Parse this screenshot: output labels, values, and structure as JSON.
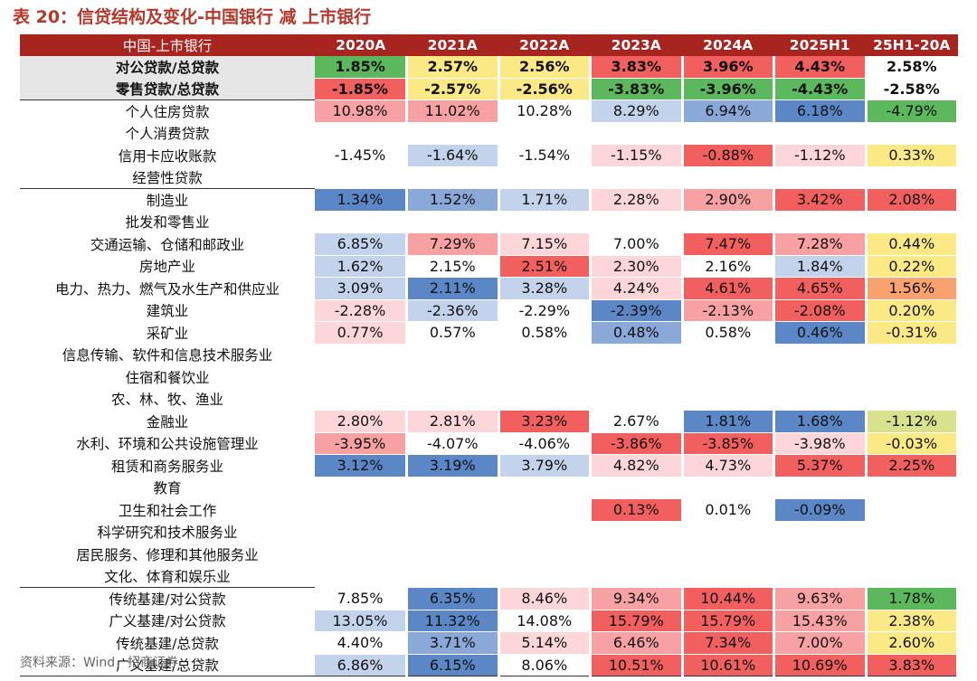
{
  "title": "表 20：信贷结构及变化-中国银行 减 上市银行",
  "source": "资料来源：Wind，招商证券",
  "colors": {
    "header_bg": "#a8251f",
    "title": "#b5372a",
    "strong_red": "#f1605e",
    "mid_red": "#f7a1a3",
    "light_red": "#fcd6d8",
    "strong_blue": "#5b87c6",
    "mid_blue": "#8aa9d8",
    "light_blue": "#c4d3ec",
    "yellow": "#fbe985",
    "light_green": "#d6e38c",
    "green": "#5cb85c",
    "orange": "#f7a26f",
    "summary_bg": "#e6e6e6"
  },
  "table": {
    "headers": [
      "中国-上市银行",
      "2020A",
      "2021A",
      "2022A",
      "2023A",
      "2024A",
      "2025H1",
      "25H1-20A"
    ],
    "rows": [
      {
        "label": "对公贷款/总贷款",
        "style": "bold",
        "cells": [
          {
            "v": "1.85%",
            "c": "green"
          },
          {
            "v": "2.57%",
            "c": "yellow"
          },
          {
            "v": "2.56%",
            "c": "yellow"
          },
          {
            "v": "3.83%",
            "c": "strong_red"
          },
          {
            "v": "3.96%",
            "c": "strong_red"
          },
          {
            "v": "4.43%",
            "c": "strong_red"
          },
          {
            "v": "2.58%",
            "c": ""
          }
        ]
      },
      {
        "label": "零售贷款/总贷款",
        "style": "bold",
        "cells": [
          {
            "v": "-1.85%",
            "c": "strong_red"
          },
          {
            "v": "-2.57%",
            "c": "yellow"
          },
          {
            "v": "-2.56%",
            "c": "yellow"
          },
          {
            "v": "-3.83%",
            "c": "green"
          },
          {
            "v": "-3.96%",
            "c": "green"
          },
          {
            "v": "-4.43%",
            "c": "green"
          },
          {
            "v": "-2.58%",
            "c": ""
          }
        ]
      },
      {
        "label": "个人住房贷款",
        "style": "topline",
        "cells": [
          {
            "v": "10.98%",
            "c": "mid_red"
          },
          {
            "v": "11.02%",
            "c": "mid_red"
          },
          {
            "v": "10.28%",
            "c": ""
          },
          {
            "v": "8.29%",
            "c": "light_blue"
          },
          {
            "v": "6.94%",
            "c": "mid_blue"
          },
          {
            "v": "6.18%",
            "c": "strong_blue"
          },
          {
            "v": "-4.79%",
            "c": "green"
          }
        ]
      },
      {
        "label": "个人消费贷款",
        "style": "",
        "cells": [
          {
            "v": "",
            "c": ""
          },
          {
            "v": "",
            "c": ""
          },
          {
            "v": "",
            "c": ""
          },
          {
            "v": "",
            "c": ""
          },
          {
            "v": "",
            "c": ""
          },
          {
            "v": "",
            "c": ""
          },
          {
            "v": "",
            "c": ""
          }
        ]
      },
      {
        "label": "信用卡应收账款",
        "style": "",
        "cells": [
          {
            "v": "-1.45%",
            "c": ""
          },
          {
            "v": "-1.64%",
            "c": "light_blue"
          },
          {
            "v": "-1.54%",
            "c": ""
          },
          {
            "v": "-1.15%",
            "c": "light_red"
          },
          {
            "v": "-0.88%",
            "c": "strong_red"
          },
          {
            "v": "-1.12%",
            "c": "light_red"
          },
          {
            "v": "0.33%",
            "c": "yellow"
          }
        ]
      },
      {
        "label": "经营性贷款",
        "style": "",
        "cells": [
          {
            "v": "",
            "c": ""
          },
          {
            "v": "",
            "c": ""
          },
          {
            "v": "",
            "c": ""
          },
          {
            "v": "",
            "c": ""
          },
          {
            "v": "",
            "c": ""
          },
          {
            "v": "",
            "c": ""
          },
          {
            "v": "",
            "c": ""
          }
        ]
      },
      {
        "label": "制造业",
        "style": "topline",
        "cells": [
          {
            "v": "1.34%",
            "c": "strong_blue"
          },
          {
            "v": "1.52%",
            "c": "mid_blue"
          },
          {
            "v": "1.71%",
            "c": "light_blue"
          },
          {
            "v": "2.28%",
            "c": "light_red"
          },
          {
            "v": "2.90%",
            "c": "mid_red"
          },
          {
            "v": "3.42%",
            "c": "strong_red"
          },
          {
            "v": "2.08%",
            "c": "strong_red"
          }
        ]
      },
      {
        "label": "批发和零售业",
        "style": "",
        "cells": [
          {
            "v": "",
            "c": ""
          },
          {
            "v": "",
            "c": ""
          },
          {
            "v": "",
            "c": ""
          },
          {
            "v": "",
            "c": ""
          },
          {
            "v": "",
            "c": ""
          },
          {
            "v": "",
            "c": ""
          },
          {
            "v": "",
            "c": ""
          }
        ]
      },
      {
        "label": "交通运输、仓储和邮政业",
        "style": "",
        "cells": [
          {
            "v": "6.85%",
            "c": "light_blue"
          },
          {
            "v": "7.29%",
            "c": "mid_red"
          },
          {
            "v": "7.15%",
            "c": "light_red"
          },
          {
            "v": "7.00%",
            "c": ""
          },
          {
            "v": "7.47%",
            "c": "strong_red"
          },
          {
            "v": "7.28%",
            "c": "mid_red"
          },
          {
            "v": "0.44%",
            "c": "yellow"
          }
        ]
      },
      {
        "label": "房地产业",
        "style": "",
        "cells": [
          {
            "v": "1.62%",
            "c": "light_blue"
          },
          {
            "v": "2.15%",
            "c": ""
          },
          {
            "v": "2.51%",
            "c": "strong_red"
          },
          {
            "v": "2.30%",
            "c": "light_red"
          },
          {
            "v": "2.16%",
            "c": ""
          },
          {
            "v": "1.84%",
            "c": "light_blue"
          },
          {
            "v": "0.22%",
            "c": "yellow"
          }
        ]
      },
      {
        "label": "电力、热力、燃气及水生产和供应业",
        "style": "",
        "cells": [
          {
            "v": "3.09%",
            "c": "light_blue"
          },
          {
            "v": "2.11%",
            "c": "strong_blue"
          },
          {
            "v": "3.28%",
            "c": "light_blue"
          },
          {
            "v": "4.24%",
            "c": "light_red"
          },
          {
            "v": "4.61%",
            "c": "strong_red"
          },
          {
            "v": "4.65%",
            "c": "strong_red"
          },
          {
            "v": "1.56%",
            "c": "orange"
          }
        ]
      },
      {
        "label": "建筑业",
        "style": "",
        "cells": [
          {
            "v": "-2.28%",
            "c": "light_red"
          },
          {
            "v": "-2.36%",
            "c": "light_blue"
          },
          {
            "v": "-2.29%",
            "c": ""
          },
          {
            "v": "-2.39%",
            "c": "strong_blue"
          },
          {
            "v": "-2.13%",
            "c": "mid_red"
          },
          {
            "v": "-2.08%",
            "c": "strong_red"
          },
          {
            "v": "0.20%",
            "c": "yellow"
          }
        ]
      },
      {
        "label": "采矿业",
        "style": "",
        "cells": [
          {
            "v": "0.77%",
            "c": "light_red"
          },
          {
            "v": "0.57%",
            "c": ""
          },
          {
            "v": "0.58%",
            "c": ""
          },
          {
            "v": "0.48%",
            "c": "mid_blue"
          },
          {
            "v": "0.58%",
            "c": ""
          },
          {
            "v": "0.46%",
            "c": "strong_blue"
          },
          {
            "v": "-0.31%",
            "c": "yellow"
          }
        ]
      },
      {
        "label": "信息传输、软件和信息技术服务业",
        "style": "",
        "cells": [
          {
            "v": "",
            "c": ""
          },
          {
            "v": "",
            "c": ""
          },
          {
            "v": "",
            "c": ""
          },
          {
            "v": "",
            "c": ""
          },
          {
            "v": "",
            "c": ""
          },
          {
            "v": "",
            "c": ""
          },
          {
            "v": "",
            "c": ""
          }
        ]
      },
      {
        "label": "住宿和餐饮业",
        "style": "",
        "cells": [
          {
            "v": "",
            "c": ""
          },
          {
            "v": "",
            "c": ""
          },
          {
            "v": "",
            "c": ""
          },
          {
            "v": "",
            "c": ""
          },
          {
            "v": "",
            "c": ""
          },
          {
            "v": "",
            "c": ""
          },
          {
            "v": "",
            "c": ""
          }
        ]
      },
      {
        "label": "农、林、牧、渔业",
        "style": "",
        "cells": [
          {
            "v": "",
            "c": ""
          },
          {
            "v": "",
            "c": ""
          },
          {
            "v": "",
            "c": ""
          },
          {
            "v": "",
            "c": ""
          },
          {
            "v": "",
            "c": ""
          },
          {
            "v": "",
            "c": ""
          },
          {
            "v": "",
            "c": ""
          }
        ]
      },
      {
        "label": "金融业",
        "style": "",
        "cells": [
          {
            "v": "2.80%",
            "c": "light_red"
          },
          {
            "v": "2.81%",
            "c": "light_red"
          },
          {
            "v": "3.23%",
            "c": "strong_red"
          },
          {
            "v": "2.67%",
            "c": ""
          },
          {
            "v": "1.81%",
            "c": "strong_blue"
          },
          {
            "v": "1.68%",
            "c": "strong_blue"
          },
          {
            "v": "-1.12%",
            "c": "light_green"
          }
        ]
      },
      {
        "label": "水利、环境和公共设施管理业",
        "style": "",
        "cells": [
          {
            "v": "-3.95%",
            "c": "mid_red"
          },
          {
            "v": "-4.07%",
            "c": ""
          },
          {
            "v": "-4.06%",
            "c": ""
          },
          {
            "v": "-3.86%",
            "c": "strong_red"
          },
          {
            "v": "-3.85%",
            "c": "strong_red"
          },
          {
            "v": "-3.98%",
            "c": "light_red"
          },
          {
            "v": "-0.03%",
            "c": "yellow"
          }
        ]
      },
      {
        "label": "租赁和商务服务业",
        "style": "",
        "cells": [
          {
            "v": "3.12%",
            "c": "strong_blue"
          },
          {
            "v": "3.19%",
            "c": "strong_blue"
          },
          {
            "v": "3.79%",
            "c": "light_blue"
          },
          {
            "v": "4.82%",
            "c": "light_red"
          },
          {
            "v": "4.73%",
            "c": "light_red"
          },
          {
            "v": "5.37%",
            "c": "strong_red"
          },
          {
            "v": "2.25%",
            "c": "strong_red"
          }
        ]
      },
      {
        "label": "教育",
        "style": "",
        "cells": [
          {
            "v": "",
            "c": ""
          },
          {
            "v": "",
            "c": ""
          },
          {
            "v": "",
            "c": ""
          },
          {
            "v": "",
            "c": ""
          },
          {
            "v": "",
            "c": ""
          },
          {
            "v": "",
            "c": ""
          },
          {
            "v": "",
            "c": ""
          }
        ]
      },
      {
        "label": "卫生和社会工作",
        "style": "",
        "cells": [
          {
            "v": "",
            "c": ""
          },
          {
            "v": "",
            "c": ""
          },
          {
            "v": "",
            "c": ""
          },
          {
            "v": "0.13%",
            "c": "strong_red"
          },
          {
            "v": "0.01%",
            "c": ""
          },
          {
            "v": "-0.09%",
            "c": "strong_blue"
          },
          {
            "v": "",
            "c": ""
          }
        ]
      },
      {
        "label": "科学研究和技术服务业",
        "style": "",
        "cells": [
          {
            "v": "",
            "c": ""
          },
          {
            "v": "",
            "c": ""
          },
          {
            "v": "",
            "c": ""
          },
          {
            "v": "",
            "c": ""
          },
          {
            "v": "",
            "c": ""
          },
          {
            "v": "",
            "c": ""
          },
          {
            "v": "",
            "c": ""
          }
        ]
      },
      {
        "label": "居民服务、修理和其他服务业",
        "style": "",
        "cells": [
          {
            "v": "",
            "c": ""
          },
          {
            "v": "",
            "c": ""
          },
          {
            "v": "",
            "c": ""
          },
          {
            "v": "",
            "c": ""
          },
          {
            "v": "",
            "c": ""
          },
          {
            "v": "",
            "c": ""
          },
          {
            "v": "",
            "c": ""
          }
        ]
      },
      {
        "label": "文化、体育和娱乐业",
        "style": "",
        "cells": [
          {
            "v": "",
            "c": ""
          },
          {
            "v": "",
            "c": ""
          },
          {
            "v": "",
            "c": ""
          },
          {
            "v": "",
            "c": ""
          },
          {
            "v": "",
            "c": ""
          },
          {
            "v": "",
            "c": ""
          },
          {
            "v": "",
            "c": ""
          }
        ]
      },
      {
        "label": "传统基建/对公贷款",
        "style": "topline",
        "cells": [
          {
            "v": "7.85%",
            "c": ""
          },
          {
            "v": "6.35%",
            "c": "strong_blue"
          },
          {
            "v": "8.46%",
            "c": "light_red"
          },
          {
            "v": "9.34%",
            "c": "mid_red"
          },
          {
            "v": "10.44%",
            "c": "strong_red"
          },
          {
            "v": "9.63%",
            "c": "mid_red"
          },
          {
            "v": "1.78%",
            "c": "green"
          }
        ]
      },
      {
        "label": "广义基建/对公贷款",
        "style": "",
        "cells": [
          {
            "v": "13.05%",
            "c": "light_blue"
          },
          {
            "v": "11.32%",
            "c": "strong_blue"
          },
          {
            "v": "14.08%",
            "c": ""
          },
          {
            "v": "15.79%",
            "c": "strong_red"
          },
          {
            "v": "15.79%",
            "c": "strong_red"
          },
          {
            "v": "15.43%",
            "c": "mid_red"
          },
          {
            "v": "2.38%",
            "c": "yellow"
          }
        ]
      },
      {
        "label": "传统基建/总贷款",
        "style": "",
        "cells": [
          {
            "v": "4.40%",
            "c": ""
          },
          {
            "v": "3.71%",
            "c": "mid_blue"
          },
          {
            "v": "5.14%",
            "c": "light_red"
          },
          {
            "v": "6.46%",
            "c": "mid_red"
          },
          {
            "v": "7.34%",
            "c": "strong_red"
          },
          {
            "v": "7.00%",
            "c": "mid_red"
          },
          {
            "v": "2.60%",
            "c": "yellow"
          }
        ]
      },
      {
        "label": "广义基建/总贷款",
        "style": "lastline",
        "cells": [
          {
            "v": "6.86%",
            "c": "light_blue"
          },
          {
            "v": "6.15%",
            "c": "strong_blue"
          },
          {
            "v": "8.06%",
            "c": ""
          },
          {
            "v": "10.51%",
            "c": "strong_red"
          },
          {
            "v": "10.61%",
            "c": "strong_red"
          },
          {
            "v": "10.69%",
            "c": "strong_red"
          },
          {
            "v": "3.83%",
            "c": "strong_red"
          }
        ]
      }
    ]
  }
}
